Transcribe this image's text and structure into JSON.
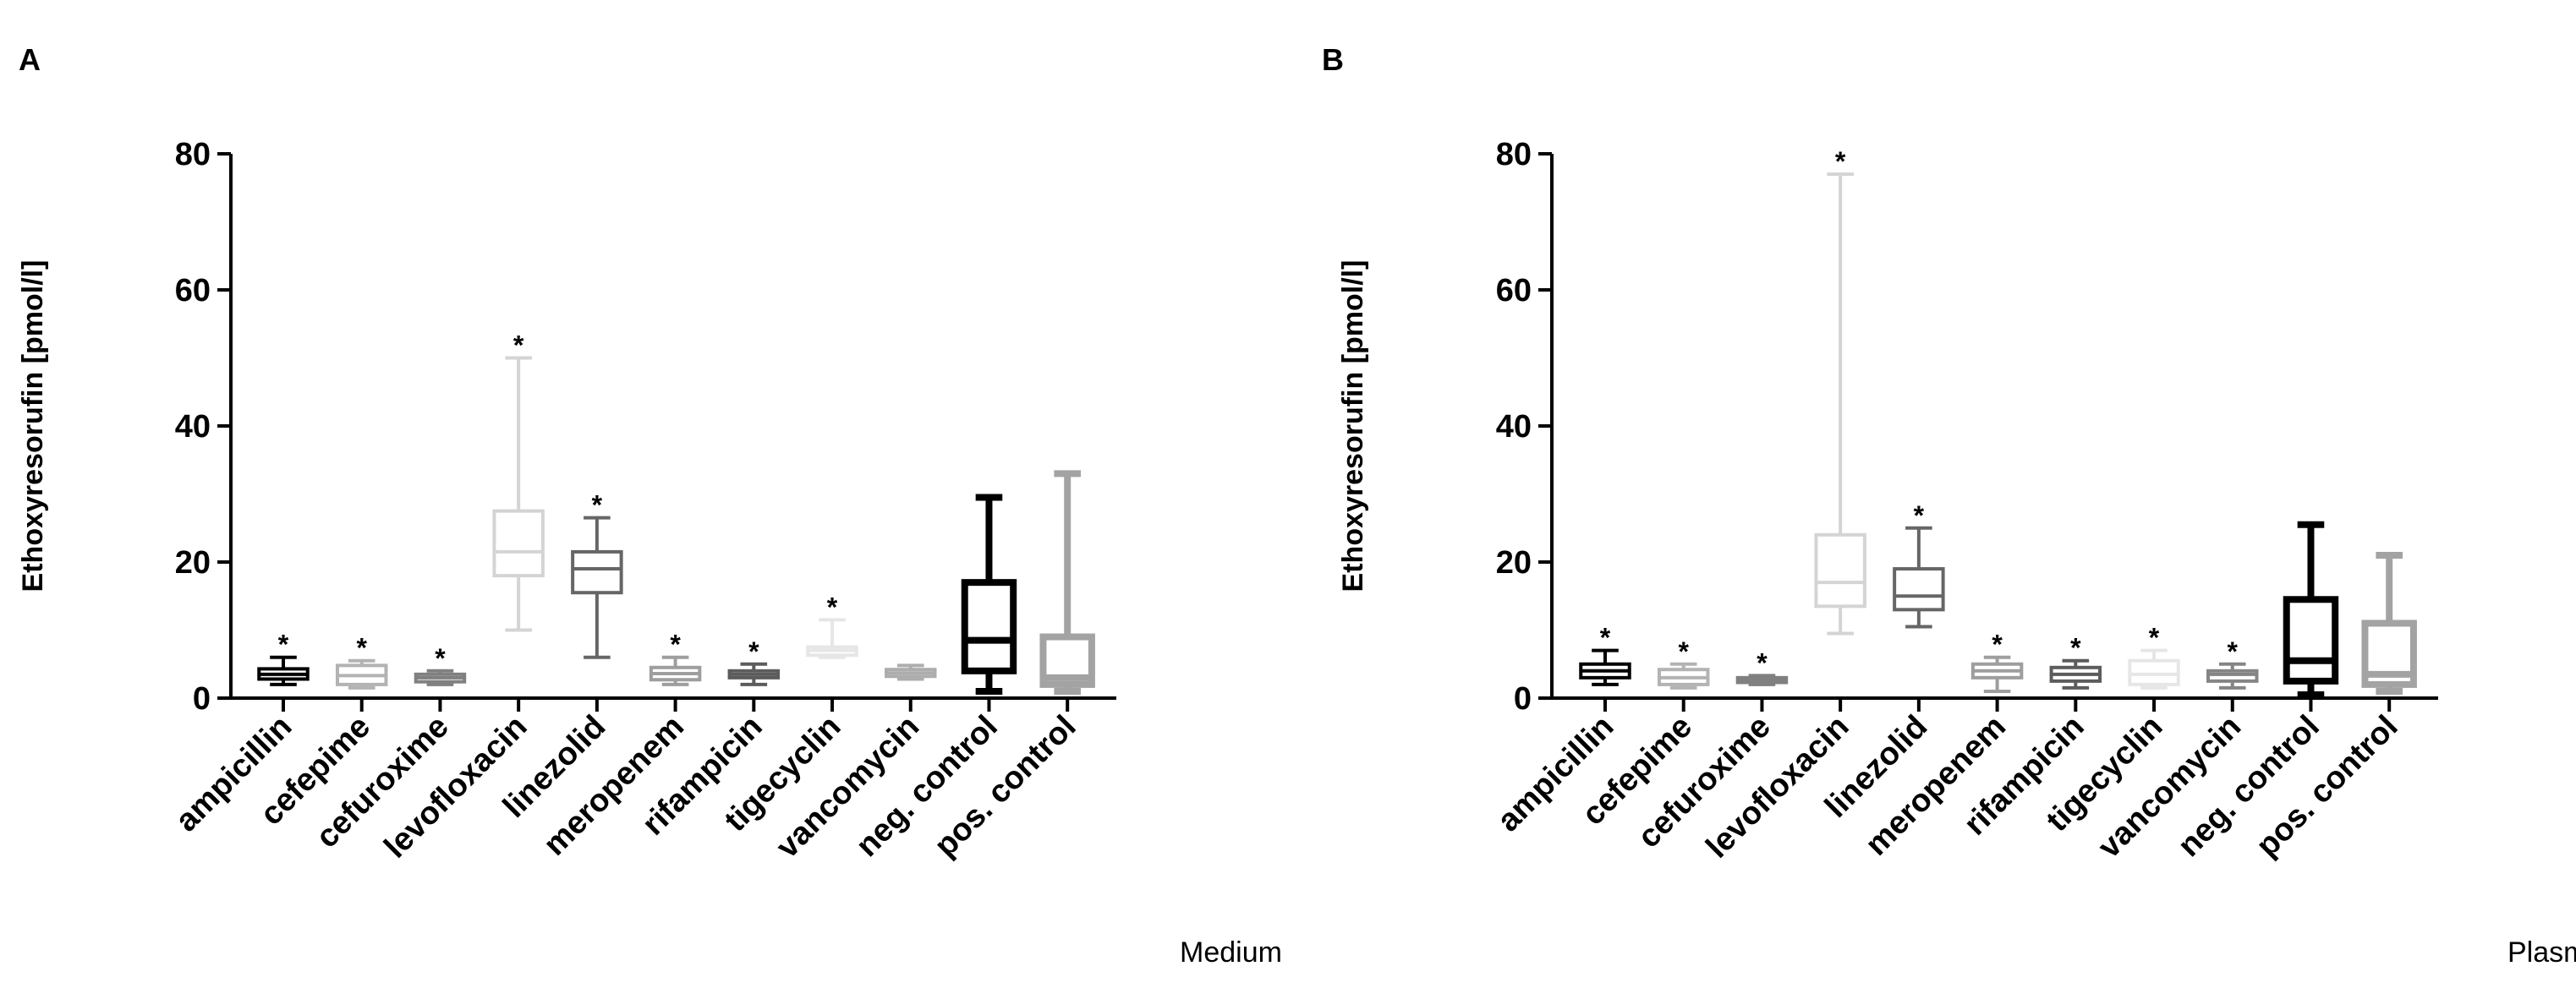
{
  "chart_data": [
    {
      "id": "A",
      "type": "box",
      "panel_label": "A",
      "caption": "Medium",
      "ylabel": "Ethoxyresorufin [pmol/l]",
      "ylim": [
        0,
        80
      ],
      "yticks": [
        "0",
        "20",
        "40",
        "60",
        "80"
      ],
      "grid": false,
      "categories": [
        "ampicillin",
        "cefepime",
        "cefuroxime",
        "levofloxacin",
        "linezolid",
        "meropenem",
        "rifampicin",
        "tigecyclin",
        "vancomycin",
        "neg. control",
        "pos. control"
      ],
      "boxes": [
        {
          "min": 2.0,
          "q1": 2.8,
          "median": 3.5,
          "q3": 4.3,
          "max": 6.0,
          "sig": "*",
          "color": "#000000",
          "bold": false
        },
        {
          "min": 1.5,
          "q1": 2.0,
          "median": 3.3,
          "q3": 4.8,
          "max": 5.5,
          "sig": "*",
          "color": "#b3b3b3",
          "bold": false
        },
        {
          "min": 2.0,
          "q1": 2.4,
          "median": 3.0,
          "q3": 3.5,
          "max": 4.0,
          "sig": "*",
          "color": "#808080",
          "bold": false
        },
        {
          "min": 10.0,
          "q1": 18.0,
          "median": 21.5,
          "q3": 27.5,
          "max": 50.0,
          "sig": "*",
          "color": "#d4d4d4",
          "bold": false
        },
        {
          "min": 6.0,
          "q1": 15.5,
          "median": 19.0,
          "q3": 21.5,
          "max": 26.5,
          "sig": "*",
          "color": "#666666",
          "bold": false
        },
        {
          "min": 2.0,
          "q1": 2.7,
          "median": 3.6,
          "q3": 4.5,
          "max": 6.0,
          "sig": "*",
          "color": "#9e9e9e",
          "bold": false
        },
        {
          "min": 2.0,
          "q1": 3.0,
          "median": 3.5,
          "q3": 4.0,
          "max": 5.0,
          "sig": "*",
          "color": "#5c5c5c",
          "bold": false
        },
        {
          "min": 6.0,
          "q1": 6.3,
          "median": 7.0,
          "q3": 7.5,
          "max": 11.5,
          "sig": "*",
          "color": "#e6e6e6",
          "bold": false
        },
        {
          "min": 2.8,
          "q1": 3.2,
          "median": 3.7,
          "q3": 4.2,
          "max": 4.8,
          "sig": "",
          "color": "#adadad",
          "bold": false
        },
        {
          "min": 1.0,
          "q1": 4.0,
          "median": 8.5,
          "q3": 17.0,
          "max": 29.5,
          "sig": "",
          "color": "#000000",
          "bold": true
        },
        {
          "min": 1.0,
          "q1": 2.0,
          "median": 3.0,
          "q3": 9.0,
          "max": 33.0,
          "sig": "",
          "color": "#a3a3a3",
          "bold": true
        }
      ]
    },
    {
      "id": "B",
      "type": "box",
      "panel_label": "B",
      "caption": "Plasma",
      "ylabel": "Ethoxyresorufin [pmol/l]",
      "ylim": [
        0,
        80
      ],
      "yticks": [
        "0",
        "20",
        "40",
        "60",
        "80"
      ],
      "grid": false,
      "categories": [
        "ampicillin",
        "cefepime",
        "cefuroxime",
        "levofloxacin",
        "linezolid",
        "meropenem",
        "rifampicin",
        "tigecyclin",
        "vancomycin",
        "neg. control",
        "pos. control"
      ],
      "boxes": [
        {
          "min": 2.0,
          "q1": 3.0,
          "median": 4.0,
          "q3": 5.0,
          "max": 7.0,
          "sig": "*",
          "color": "#000000",
          "bold": false
        },
        {
          "min": 1.5,
          "q1": 2.0,
          "median": 3.0,
          "q3": 4.2,
          "max": 5.0,
          "sig": "*",
          "color": "#b3b3b3",
          "bold": false
        },
        {
          "min": 2.0,
          "q1": 2.3,
          "median": 2.6,
          "q3": 3.0,
          "max": 3.3,
          "sig": "*",
          "color": "#808080",
          "bold": false
        },
        {
          "min": 9.5,
          "q1": 13.5,
          "median": 17.0,
          "q3": 24.0,
          "max": 77.0,
          "sig": "*",
          "color": "#d4d4d4",
          "bold": false
        },
        {
          "min": 10.5,
          "q1": 13.0,
          "median": 15.0,
          "q3": 19.0,
          "max": 25.0,
          "sig": "*",
          "color": "#666666",
          "bold": false
        },
        {
          "min": 1.0,
          "q1": 3.0,
          "median": 4.0,
          "q3": 5.0,
          "max": 6.0,
          "sig": "*",
          "color": "#9e9e9e",
          "bold": false
        },
        {
          "min": 1.5,
          "q1": 2.5,
          "median": 3.5,
          "q3": 4.5,
          "max": 5.5,
          "sig": "*",
          "color": "#5c5c5c",
          "bold": false
        },
        {
          "min": 1.5,
          "q1": 2.0,
          "median": 3.5,
          "q3": 5.5,
          "max": 7.0,
          "sig": "*",
          "color": "#e6e6e6",
          "bold": false
        },
        {
          "min": 1.5,
          "q1": 2.5,
          "median": 3.5,
          "q3": 4.0,
          "max": 5.0,
          "sig": "*",
          "color": "#858585",
          "bold": false
        },
        {
          "min": 0.5,
          "q1": 2.5,
          "median": 5.5,
          "q3": 14.5,
          "max": 25.5,
          "sig": "",
          "color": "#000000",
          "bold": true
        },
        {
          "min": 1.0,
          "q1": 2.0,
          "median": 3.5,
          "q3": 11.0,
          "max": 21.0,
          "sig": "",
          "color": "#a3a3a3",
          "bold": true
        }
      ]
    }
  ]
}
